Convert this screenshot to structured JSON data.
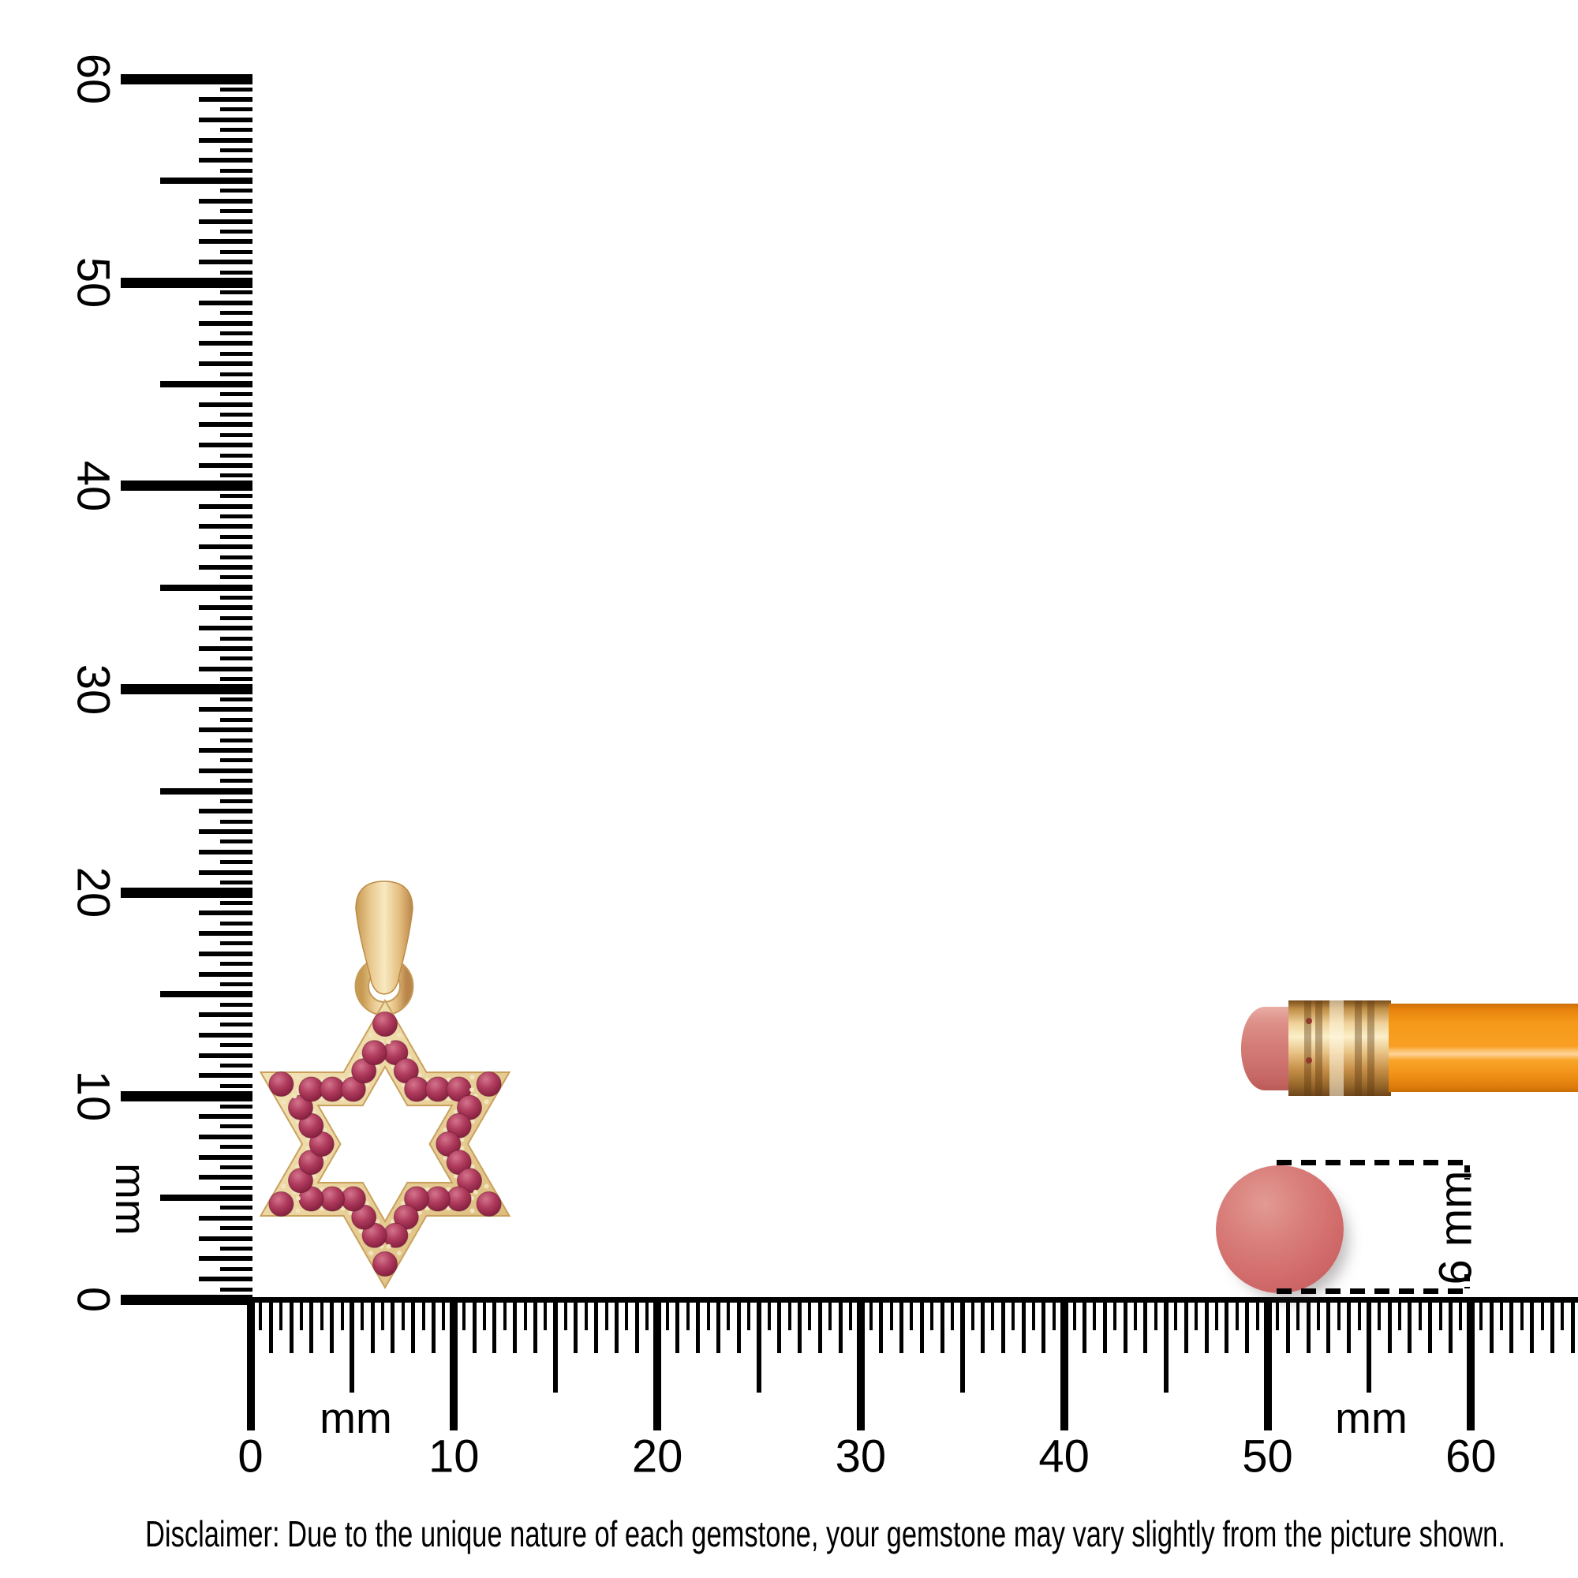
{
  "scene": {
    "background": "#ffffff",
    "description": "Star of David gemstone pendant shown to scale with millimeter rulers, a pencil and a 6 mm reference gemstone"
  },
  "rulers": {
    "unit": "mm",
    "vertical": {
      "min": 0,
      "max": 60,
      "tick_labels": [
        "0",
        "10",
        "20",
        "30",
        "40",
        "50",
        "60"
      ],
      "unit_label": "mm"
    },
    "horizontal": {
      "min": 0,
      "max": 60,
      "tick_labels": [
        "0",
        "10",
        "20",
        "30",
        "40",
        "50",
        "60"
      ],
      "unit_label_left": "mm",
      "unit_label_right": "mm"
    }
  },
  "pendant": {
    "type": "star-of-david-pendant",
    "stone_count": 36,
    "gem_color": "#A83355",
    "gem_highlight": "#D4748C",
    "gem_shadow": "#701A34",
    "gold_light": "#F3E2B3",
    "gold_mid": "#E7C98F",
    "gold_dark": "#C49A58"
  },
  "size_annotation": {
    "label": "6 mm",
    "gem_color": "#D4716F"
  },
  "pencil": {
    "body_color": "#F89F22",
    "ferrule_color": "#E8C183",
    "eraser_color": "#D47E78"
  },
  "disclaimer": "Disclaimer: Due to the unique nature of each gemstone, your gemstone may vary slightly from the picture shown."
}
